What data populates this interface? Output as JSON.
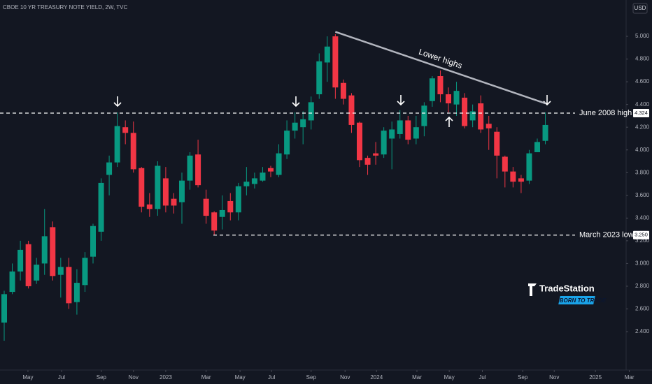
{
  "chart_data": {
    "type": "candlestick",
    "title": "CBOE 10 YR TREASURY NOTE YIELD, 2W, TVC",
    "currency": "USD",
    "up_color": "#089981",
    "down_color": "#f23645",
    "open": [
      2.48,
      2.75,
      2.93,
      3.17,
      2.85,
      3.0,
      3.32,
      2.9,
      2.97,
      2.66,
      2.81,
      3.06,
      3.28,
      3.78,
      3.89,
      4.2,
      4.15,
      3.84,
      3.52,
      3.48,
      3.75,
      3.57,
      3.54,
      3.73,
      3.96,
      3.57,
      3.45,
      3.41,
      3.55,
      3.45,
      3.68,
      3.7,
      3.73,
      3.84,
      3.78,
      3.96,
      4.17,
      4.2,
      4.26,
      4.49,
      4.77,
      5.0,
      4.59,
      4.48,
      4.24,
      3.93,
      3.97,
      3.96,
      4.1,
      4.14,
      4.26,
      4.1,
      4.21,
      4.43,
      4.65,
      4.49,
      4.4,
      4.46,
      4.26,
      4.41,
      4.23,
      4.16,
      3.94,
      3.81,
      3.75,
      3.73,
      3.98,
      4.08
    ],
    "high": [
      2.76,
      3.0,
      3.2,
      3.2,
      3.05,
      3.48,
      3.37,
      3.05,
      3.05,
      2.95,
      3.1,
      3.35,
      3.75,
      3.95,
      4.33,
      4.26,
      4.25,
      3.85,
      3.62,
      3.9,
      3.85,
      3.62,
      3.8,
      3.98,
      4.09,
      3.65,
      3.46,
      3.6,
      3.62,
      3.71,
      3.85,
      3.8,
      3.85,
      3.86,
      4.05,
      4.26,
      4.33,
      4.34,
      4.47,
      4.85,
      5.0,
      5.02,
      4.62,
      4.5,
      4.25,
      3.95,
      4.07,
      4.2,
      4.25,
      4.35,
      4.3,
      4.3,
      4.42,
      4.65,
      4.7,
      4.55,
      4.6,
      4.5,
      4.4,
      4.48,
      4.3,
      4.2,
      3.95,
      3.85,
      3.78,
      4.0,
      4.1,
      4.33
    ],
    "low": [
      2.32,
      2.73,
      2.85,
      2.78,
      2.82,
      2.9,
      2.85,
      2.7,
      2.6,
      2.55,
      2.75,
      3.0,
      3.2,
      3.6,
      3.85,
      4.05,
      3.8,
      3.45,
      3.41,
      3.42,
      3.45,
      3.44,
      3.35,
      3.65,
      3.67,
      3.35,
      3.25,
      3.3,
      3.38,
      3.38,
      3.6,
      3.66,
      3.72,
      3.76,
      3.76,
      3.92,
      4.1,
      4.05,
      4.18,
      4.45,
      4.6,
      4.45,
      4.4,
      4.15,
      3.85,
      3.78,
      3.87,
      3.93,
      3.83,
      4.1,
      4.05,
      4.05,
      4.12,
      4.38,
      4.42,
      4.33,
      4.3,
      4.19,
      4.2,
      4.15,
      4.0,
      3.75,
      3.67,
      3.67,
      3.62,
      3.7,
      3.98,
      4.05
    ],
    "close": [
      2.73,
      2.93,
      3.12,
      2.8,
      2.99,
      3.24,
      2.89,
      2.97,
      2.65,
      2.83,
      3.05,
      3.33,
      3.71,
      3.89,
      4.21,
      4.15,
      3.83,
      3.5,
      3.48,
      3.86,
      3.51,
      3.51,
      3.73,
      3.95,
      3.69,
      3.42,
      3.29,
      3.47,
      3.45,
      3.68,
      3.72,
      3.75,
      3.8,
      3.81,
      3.97,
      4.17,
      4.24,
      4.27,
      4.42,
      4.78,
      4.91,
      4.55,
      4.45,
      4.22,
      3.91,
      3.87,
      3.95,
      4.17,
      4.18,
      4.26,
      4.09,
      4.2,
      4.39,
      4.63,
      4.49,
      4.41,
      4.52,
      4.21,
      4.34,
      4.18,
      4.19,
      3.95,
      3.81,
      3.72,
      3.72,
      3.97,
      4.07,
      4.22
    ],
    "xlim": [
      -0.52,
      77.0
    ],
    "xticks": [
      {
        "value": 2.94,
        "label": "May"
      },
      {
        "value": 7.1,
        "label": "Jul"
      },
      {
        "value": 12.03,
        "label": "Sep"
      },
      {
        "value": 16.0,
        "label": "Nov"
      },
      {
        "value": 20.0,
        "label": "2023"
      },
      {
        "value": 25.0,
        "label": "Mar"
      },
      {
        "value": 29.2,
        "label": "May"
      },
      {
        "value": 33.1,
        "label": "Jul"
      },
      {
        "value": 38.0,
        "label": "Sep"
      },
      {
        "value": 42.2,
        "label": "Nov"
      },
      {
        "value": 46.1,
        "label": "2024"
      },
      {
        "value": 51.1,
        "label": "Mar"
      },
      {
        "value": 55.1,
        "label": "May"
      },
      {
        "value": 59.2,
        "label": "Jul"
      },
      {
        "value": 64.2,
        "label": "Sep"
      },
      {
        "value": 68.1,
        "label": "Nov"
      },
      {
        "value": 73.2,
        "label": "2025"
      },
      {
        "value": 77.4,
        "label": "Mar"
      }
    ],
    "ylim": [
      2.062,
      5.32
    ],
    "yticks": [
      {
        "value": 2.4,
        "label": "2.400"
      },
      {
        "value": 2.6,
        "label": "2.600"
      },
      {
        "value": 2.8,
        "label": "2.800"
      },
      {
        "value": 3.0,
        "label": "3.000"
      },
      {
        "value": 3.2,
        "label": "3.200"
      },
      {
        "value": 3.4,
        "label": "3.400"
      },
      {
        "value": 3.6,
        "label": "3.600"
      },
      {
        "value": 3.8,
        "label": "3.800"
      },
      {
        "value": 4.0,
        "label": "4.000"
      },
      {
        "value": 4.2,
        "label": "4.200"
      },
      {
        "value": 4.4,
        "label": "4.400"
      },
      {
        "value": 4.6,
        "label": "4.600"
      },
      {
        "value": 4.8,
        "label": "4.800"
      },
      {
        "value": 5.0,
        "label": "5.000"
      }
    ],
    "levels": [
      {
        "name": "June 2008 high",
        "value": 4.324,
        "value_label": "4.324",
        "start": -0.52
      },
      {
        "name": "March 2023 low",
        "value": 3.25,
        "value_label": "3.250",
        "start": 25.9
      }
    ],
    "trendline": {
      "label": "Lower highs",
      "x": [
        41,
        67
      ],
      "y": [
        5.04,
        4.41
      ]
    },
    "watermark": {
      "name": "TradeStation",
      "tagline": "BORN TO TRADE"
    }
  }
}
